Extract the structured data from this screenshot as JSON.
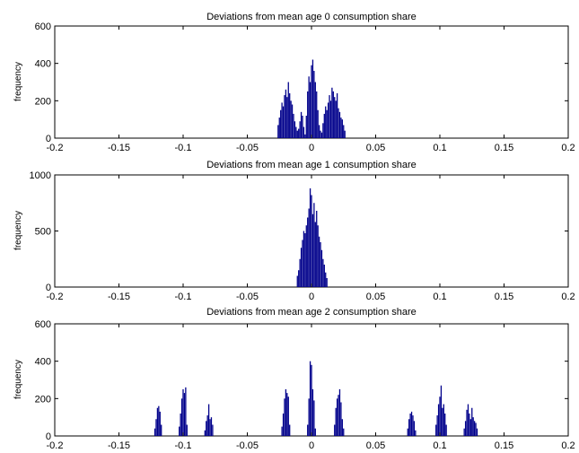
{
  "chart_data": [
    {
      "type": "bar",
      "title": "Deviations from mean age 0 consumption share",
      "xlabel": "",
      "ylabel": "frequency",
      "xlim": [
        -0.2,
        0.2
      ],
      "ylim": [
        0,
        600
      ],
      "xticks": [
        -0.2,
        -0.15,
        -0.1,
        -0.05,
        0,
        0.05,
        0.1,
        0.15,
        0.2
      ],
      "xtick_labels": [
        "-0.2",
        "-0.15",
        "-0.1",
        "-0.05",
        "0",
        "0.05",
        "0.1",
        "0.15",
        "0.2"
      ],
      "yticks": [
        0,
        200,
        400,
        600
      ],
      "ytick_labels": [
        "0",
        "200",
        "400",
        "600"
      ],
      "color": "#00008b",
      "grid": false,
      "bins": {
        "x": [
          -0.026,
          -0.025,
          -0.024,
          -0.023,
          -0.022,
          -0.021,
          -0.02,
          -0.019,
          -0.018,
          -0.017,
          -0.016,
          -0.015,
          -0.014,
          -0.013,
          -0.012,
          -0.011,
          -0.01,
          -0.009,
          -0.008,
          -0.007,
          -0.006,
          -0.005,
          -0.004,
          -0.003,
          -0.002,
          -0.001,
          0,
          0.001,
          0.002,
          0.003,
          0.004,
          0.005,
          0.006,
          0.007,
          0.008,
          0.009,
          0.01,
          0.011,
          0.012,
          0.013,
          0.014,
          0.015,
          0.016,
          0.017,
          0.018,
          0.019,
          0.02,
          0.021,
          0.022,
          0.023,
          0.024,
          0.025,
          0.026
        ],
        "values": [
          70,
          110,
          150,
          190,
          170,
          230,
          260,
          220,
          300,
          240,
          200,
          180,
          130,
          90,
          60,
          40,
          50,
          90,
          140,
          120,
          60,
          20,
          120,
          250,
          330,
          300,
          390,
          420,
          360,
          300,
          250,
          150,
          70,
          40,
          30,
          80,
          130,
          170,
          150,
          190,
          230,
          200,
          270,
          250,
          220,
          200,
          240,
          160,
          140,
          110,
          100,
          70,
          40
        ]
      }
    },
    {
      "type": "bar",
      "title": "Deviations from mean age 1 consumption share",
      "xlabel": "",
      "ylabel": "frequency",
      "xlim": [
        -0.2,
        0.2
      ],
      "ylim": [
        0,
        1000
      ],
      "xticks": [
        -0.2,
        -0.15,
        -0.1,
        -0.05,
        0,
        0.05,
        0.1,
        0.15,
        0.2
      ],
      "xtick_labels": [
        "-0.2",
        "-0.15",
        "-0.1",
        "-0.05",
        "0",
        "0.05",
        "0.1",
        "0.15",
        "0.2"
      ],
      "yticks": [
        0,
        500,
        1000
      ],
      "ytick_labels": [
        "0",
        "500",
        "1000"
      ],
      "color": "#00008b",
      "grid": false,
      "bins": {
        "x": [
          -0.011,
          -0.01,
          -0.009,
          -0.008,
          -0.007,
          -0.006,
          -0.005,
          -0.004,
          -0.003,
          -0.002,
          -0.001,
          0,
          0.001,
          0.002,
          0.003,
          0.004,
          0.005,
          0.006,
          0.007,
          0.008,
          0.009,
          0.01,
          0.011,
          0.012
        ],
        "values": [
          100,
          150,
          250,
          350,
          420,
          500,
          480,
          550,
          620,
          700,
          880,
          820,
          650,
          750,
          580,
          680,
          550,
          450,
          400,
          330,
          250,
          200,
          130,
          80
        ]
      }
    },
    {
      "type": "bar",
      "title": "Deviations from mean age 2 consumption share",
      "xlabel": "",
      "ylabel": "frequency",
      "xlim": [
        -0.2,
        0.2
      ],
      "ylim": [
        0,
        600
      ],
      "xticks": [
        -0.2,
        -0.15,
        -0.1,
        -0.05,
        0,
        0.05,
        0.1,
        0.15,
        0.2
      ],
      "xtick_labels": [
        "-0.2",
        "-0.15",
        "-0.1",
        "-0.05",
        "0",
        "0.05",
        "0.1",
        "0.15",
        "0.2"
      ],
      "yticks": [
        0,
        200,
        400,
        600
      ],
      "ytick_labels": [
        "0",
        "200",
        "400",
        "600"
      ],
      "color": "#00008b",
      "grid": false,
      "bins": {
        "x": [
          -0.122,
          -0.121,
          -0.12,
          -0.119,
          -0.118,
          -0.117,
          -0.103,
          -0.102,
          -0.101,
          -0.1,
          -0.099,
          -0.098,
          -0.097,
          -0.083,
          -0.082,
          -0.081,
          -0.08,
          -0.079,
          -0.078,
          -0.077,
          -0.023,
          -0.022,
          -0.021,
          -0.02,
          -0.019,
          -0.018,
          -0.017,
          -0.003,
          -0.002,
          -0.001,
          0,
          0.001,
          0.002,
          0.003,
          0.018,
          0.019,
          0.02,
          0.021,
          0.022,
          0.023,
          0.024,
          0.025,
          0.075,
          0.076,
          0.077,
          0.078,
          0.079,
          0.08,
          0.081,
          0.097,
          0.098,
          0.099,
          0.1,
          0.101,
          0.102,
          0.103,
          0.104,
          0.105,
          0.119,
          0.12,
          0.121,
          0.122,
          0.123,
          0.124,
          0.125,
          0.126,
          0.127,
          0.128,
          0.129
        ],
        "values": [
          40,
          90,
          150,
          160,
          130,
          60,
          50,
          120,
          200,
          250,
          230,
          260,
          60,
          30,
          80,
          110,
          170,
          90,
          100,
          60,
          50,
          120,
          200,
          250,
          230,
          210,
          60,
          60,
          200,
          400,
          380,
          250,
          190,
          40,
          60,
          150,
          200,
          220,
          250,
          180,
          90,
          40,
          40,
          90,
          120,
          130,
          110,
          80,
          30,
          60,
          110,
          170,
          210,
          270,
          150,
          170,
          120,
          60,
          40,
          80,
          140,
          170,
          120,
          90,
          150,
          100,
          80,
          70,
          40
        ]
      }
    }
  ]
}
